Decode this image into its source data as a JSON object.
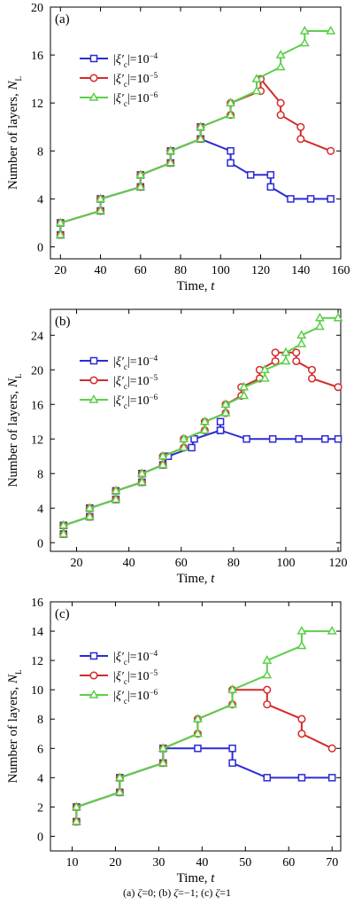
{
  "figure": {
    "caption_parts": [
      {
        "text": "(a) "
      },
      {
        "text": "ζ",
        "italic": true
      },
      {
        "text": "=0; (b) "
      },
      {
        "text": "ζ",
        "italic": true
      },
      {
        "text": "=−1; (c) "
      },
      {
        "text": "ζ",
        "italic": true
      },
      {
        "text": "=1"
      }
    ]
  },
  "chart_data": [
    {
      "type": "line",
      "panel_label": "(a)",
      "xlabel": "Time, t",
      "ylabel": "Number of layers, N_L",
      "xlim": [
        15,
        160
      ],
      "ylim": [
        -1,
        20
      ],
      "xticks": [
        20,
        40,
        60,
        80,
        100,
        120,
        140,
        160
      ],
      "yticks": [
        0,
        4,
        8,
        12,
        16,
        20
      ],
      "legend_position": "top-right",
      "series": [
        {
          "name": "|ξ′c|=10^-4",
          "color": "#2b2bd4",
          "marker": "square",
          "points": [
            [
              20,
              1
            ],
            [
              20,
              2
            ],
            [
              40,
              3
            ],
            [
              40,
              4
            ],
            [
              60,
              5
            ],
            [
              60,
              6
            ],
            [
              75,
              7
            ],
            [
              75,
              8
            ],
            [
              90,
              9
            ],
            [
              90,
              10
            ],
            [
              90,
              9
            ],
            [
              105,
              8
            ],
            [
              105,
              7
            ],
            [
              115,
              6
            ],
            [
              125,
              6
            ],
            [
              125,
              5
            ],
            [
              135,
              4
            ],
            [
              145,
              4
            ],
            [
              155,
              4
            ]
          ]
        },
        {
          "name": "|ξ′c|=10^-5",
          "color": "#d42b2b",
          "marker": "circle",
          "points": [
            [
              20,
              1
            ],
            [
              20,
              2
            ],
            [
              40,
              3
            ],
            [
              40,
              4
            ],
            [
              60,
              5
            ],
            [
              60,
              6
            ],
            [
              75,
              7
            ],
            [
              75,
              8
            ],
            [
              90,
              9
            ],
            [
              90,
              10
            ],
            [
              105,
              11
            ],
            [
              105,
              12
            ],
            [
              120,
              13
            ],
            [
              120,
              14
            ],
            [
              130,
              12
            ],
            [
              130,
              11
            ],
            [
              140,
              10
            ],
            [
              140,
              9
            ],
            [
              155,
              8
            ]
          ]
        },
        {
          "name": "|ξ′c|=10^-6",
          "color": "#5ccf4b",
          "marker": "triangle",
          "points": [
            [
              20,
              1
            ],
            [
              20,
              2
            ],
            [
              40,
              3
            ],
            [
              40,
              4
            ],
            [
              60,
              5
            ],
            [
              60,
              6
            ],
            [
              75,
              7
            ],
            [
              75,
              8
            ],
            [
              90,
              9
            ],
            [
              90,
              10
            ],
            [
              105,
              11
            ],
            [
              105,
              12
            ],
            [
              118,
              13
            ],
            [
              118,
              14
            ],
            [
              130,
              15
            ],
            [
              130,
              16
            ],
            [
              142,
              17
            ],
            [
              142,
              18
            ],
            [
              155,
              18
            ]
          ]
        }
      ]
    },
    {
      "type": "line",
      "panel_label": "(b)",
      "xlabel": "Time, t",
      "ylabel": "Number of layers, N_L",
      "xlim": [
        10,
        121
      ],
      "ylim": [
        -1,
        27
      ],
      "xticks": [
        20,
        40,
        60,
        80,
        100,
        120
      ],
      "yticks": [
        0,
        4,
        8,
        12,
        16,
        20,
        24
      ],
      "legend_position": "top-left",
      "series": [
        {
          "name": "|ξ′c|=10^-4",
          "color": "#2b2bd4",
          "marker": "square",
          "points": [
            [
              15,
              1
            ],
            [
              15,
              2
            ],
            [
              25,
              3
            ],
            [
              25,
              4
            ],
            [
              35,
              5
            ],
            [
              35,
              6
            ],
            [
              45,
              7
            ],
            [
              45,
              8
            ],
            [
              53,
              9
            ],
            [
              55,
              10
            ],
            [
              64,
              11
            ],
            [
              65,
              12
            ],
            [
              75,
              13
            ],
            [
              75,
              14
            ],
            [
              75,
              13
            ],
            [
              85,
              12
            ],
            [
              95,
              12
            ],
            [
              105,
              12
            ],
            [
              115,
              12
            ],
            [
              120,
              12
            ]
          ]
        },
        {
          "name": "|ξ′c|=10^-5",
          "color": "#d42b2b",
          "marker": "circle",
          "points": [
            [
              15,
              1
            ],
            [
              15,
              2
            ],
            [
              25,
              3
            ],
            [
              25,
              4
            ],
            [
              35,
              5
            ],
            [
              35,
              6
            ],
            [
              45,
              7
            ],
            [
              45,
              8
            ],
            [
              53,
              9
            ],
            [
              53,
              10
            ],
            [
              61,
              11
            ],
            [
              61,
              12
            ],
            [
              69,
              13
            ],
            [
              69,
              14
            ],
            [
              77,
              15
            ],
            [
              77,
              16
            ],
            [
              83,
              17
            ],
            [
              83,
              18
            ],
            [
              90,
              19
            ],
            [
              90,
              20
            ],
            [
              96,
              21
            ],
            [
              96,
              22
            ],
            [
              104,
              22
            ],
            [
              104,
              21
            ],
            [
              110,
              20
            ],
            [
              110,
              19
            ],
            [
              120,
              18
            ]
          ]
        },
        {
          "name": "|ξ′c|=10^-6",
          "color": "#5ccf4b",
          "marker": "triangle",
          "points": [
            [
              15,
              1
            ],
            [
              15,
              2
            ],
            [
              25,
              3
            ],
            [
              25,
              4
            ],
            [
              35,
              5
            ],
            [
              35,
              6
            ],
            [
              45,
              7
            ],
            [
              45,
              8
            ],
            [
              53,
              9
            ],
            [
              53,
              10
            ],
            [
              61,
              11
            ],
            [
              61,
              12
            ],
            [
              69,
              13
            ],
            [
              69,
              14
            ],
            [
              77,
              15
            ],
            [
              77,
              16
            ],
            [
              84,
              17
            ],
            [
              84,
              18
            ],
            [
              92,
              19
            ],
            [
              92,
              20
            ],
            [
              100,
              21
            ],
            [
              100,
              22
            ],
            [
              106,
              23
            ],
            [
              106,
              24
            ],
            [
              113,
              25
            ],
            [
              113,
              26
            ],
            [
              120,
              26
            ]
          ]
        }
      ]
    },
    {
      "type": "line",
      "panel_label": "(c)",
      "xlabel": "Time, t",
      "ylabel": "Number of layers, N_L",
      "xlim": [
        5,
        72
      ],
      "ylim": [
        -1,
        16
      ],
      "xticks": [
        10,
        20,
        30,
        40,
        50,
        60,
        70
      ],
      "yticks": [
        0,
        2,
        4,
        6,
        8,
        10,
        12,
        14,
        16
      ],
      "legend_position": "top-center",
      "series": [
        {
          "name": "|ξ′c|=10^-4",
          "color": "#2b2bd4",
          "marker": "square",
          "points": [
            [
              11,
              1
            ],
            [
              11,
              2
            ],
            [
              21,
              3
            ],
            [
              21,
              4
            ],
            [
              31,
              5
            ],
            [
              31,
              6
            ],
            [
              39,
              6
            ],
            [
              47,
              6
            ],
            [
              47,
              5
            ],
            [
              55,
              4
            ],
            [
              63,
              4
            ],
            [
              70,
              4
            ]
          ]
        },
        {
          "name": "|ξ′c|=10^-5",
          "color": "#d42b2b",
          "marker": "circle",
          "points": [
            [
              11,
              1
            ],
            [
              11,
              2
            ],
            [
              21,
              3
            ],
            [
              21,
              4
            ],
            [
              31,
              5
            ],
            [
              31,
              6
            ],
            [
              39,
              7
            ],
            [
              39,
              8
            ],
            [
              47,
              9
            ],
            [
              47,
              10
            ],
            [
              55,
              10
            ],
            [
              55,
              9
            ],
            [
              63,
              8
            ],
            [
              63,
              7
            ],
            [
              70,
              6
            ]
          ]
        },
        {
          "name": "|ξ′c|=10^-6",
          "color": "#5ccf4b",
          "marker": "triangle",
          "points": [
            [
              11,
              1
            ],
            [
              11,
              2
            ],
            [
              21,
              3
            ],
            [
              21,
              4
            ],
            [
              31,
              5
            ],
            [
              31,
              6
            ],
            [
              39,
              7
            ],
            [
              39,
              8
            ],
            [
              47,
              9
            ],
            [
              47,
              10
            ],
            [
              55,
              11
            ],
            [
              55,
              12
            ],
            [
              63,
              13
            ],
            [
              63,
              14
            ],
            [
              70,
              14
            ]
          ]
        }
      ]
    }
  ]
}
